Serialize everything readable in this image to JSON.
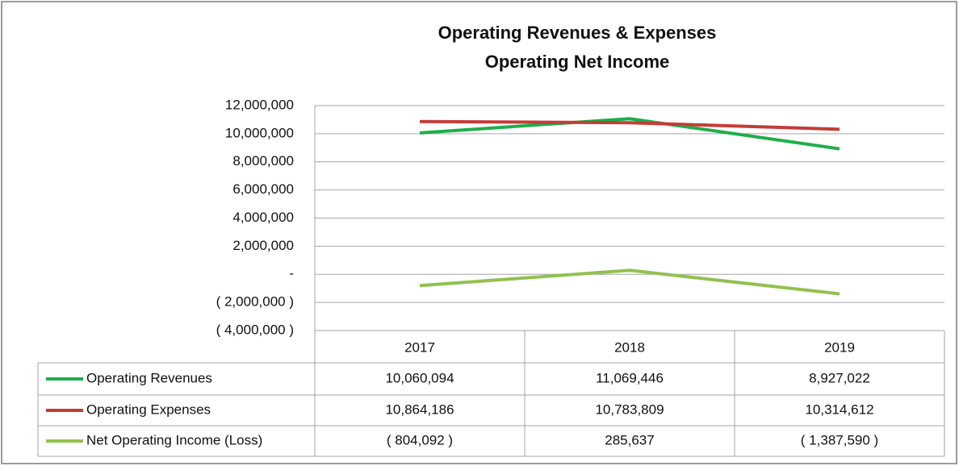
{
  "chart_data": {
    "type": "line",
    "title": "Operating Revenues & Expenses",
    "subtitle": "Operating Net Income",
    "categories": [
      "2017",
      "2018",
      "2019"
    ],
    "series": [
      {
        "name": "Operating Revenues",
        "color": "#1fae4b",
        "values": [
          10060094,
          11069446,
          8927022
        ],
        "value_labels": [
          "10,060,094",
          "11,069,446",
          "8,927,022"
        ]
      },
      {
        "name": "Operating Expenses",
        "color": "#c43c38",
        "values": [
          10864186,
          10783809,
          10314612
        ],
        "value_labels": [
          "10,864,186",
          "10,783,809",
          "10,314,612"
        ]
      },
      {
        "name": "Net Operating Income (Loss)",
        "color": "#92c14f",
        "values": [
          -804092,
          285637,
          -1387590
        ],
        "value_labels": [
          "( 804,092 )",
          "285,637",
          "( 1,387,590 )"
        ]
      }
    ],
    "ylim": [
      -4000000,
      12000000
    ],
    "yticks": [
      {
        "value": -4000000,
        "label": "( 4,000,000 )"
      },
      {
        "value": -2000000,
        "label": "( 2,000,000 )"
      },
      {
        "value": 0,
        "label": "-"
      },
      {
        "value": 2000000,
        "label": "2,000,000"
      },
      {
        "value": 4000000,
        "label": "4,000,000"
      },
      {
        "value": 6000000,
        "label": "6,000,000"
      },
      {
        "value": 8000000,
        "label": "8,000,000"
      },
      {
        "value": 10000000,
        "label": "10,000,000"
      },
      {
        "value": 12000000,
        "label": "12,000,000"
      }
    ],
    "grid": true
  }
}
